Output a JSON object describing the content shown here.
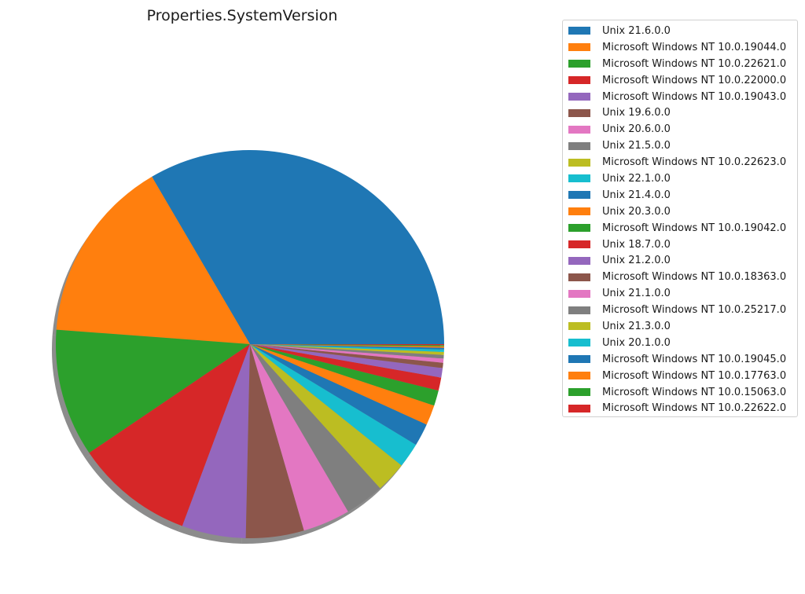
{
  "chart_data": {
    "type": "pie",
    "title": "Properties.SystemVersion",
    "shadow": true,
    "start_angle_deg": 0,
    "direction": "counterclockwise",
    "legend_position": "right",
    "categories": [
      "Unix 21.6.0.0",
      "Microsoft Windows NT 10.0.19044.0",
      "Microsoft Windows NT 10.0.22621.0",
      "Microsoft Windows NT 10.0.22000.0",
      "Microsoft Windows NT 10.0.19043.0",
      "Unix 19.6.0.0",
      "Unix 20.6.0.0",
      "Unix 21.5.0.0",
      "Microsoft Windows NT 10.0.22623.0",
      "Unix 22.1.0.0",
      "Unix 21.4.0.0",
      "Unix 20.3.0.0",
      "Microsoft Windows NT 10.0.19042.0",
      "Unix 18.7.0.0",
      "Unix 21.2.0.0",
      "Microsoft Windows NT 10.0.18363.0",
      "Unix 21.1.0.0",
      "Microsoft Windows NT 10.0.25217.0",
      "Unix 21.3.0.0",
      "Unix 20.1.0.0",
      "Microsoft Windows NT 10.0.19045.0",
      "Microsoft Windows NT 10.0.17763.0",
      "Microsoft Windows NT 10.0.15063.0",
      "Microsoft Windows NT 10.0.22622.0"
    ],
    "values": [
      33.9,
      15.6,
      10.8,
      10.0,
      5.4,
      4.9,
      4.0,
      3.3,
      2.6,
      2.1,
      1.9,
      1.7,
      1.3,
      1.1,
      0.8,
      0.45,
      0.35,
      0.3,
      0.25,
      0.2,
      0.15,
      0.12,
      0.1,
      0.08
    ],
    "colors": [
      "#1f77b4",
      "#ff7f0e",
      "#2ca02c",
      "#d62728",
      "#9467bd",
      "#8c564b",
      "#e377c2",
      "#7f7f7f",
      "#bcbd22",
      "#17becf"
    ]
  }
}
